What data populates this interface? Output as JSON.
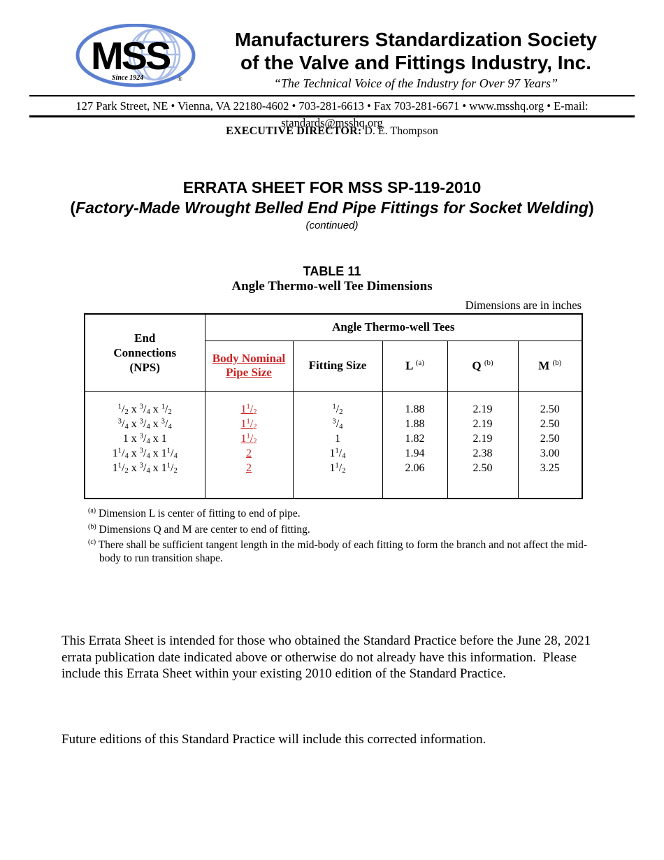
{
  "header": {
    "logo": {
      "text": "MSS",
      "since": "Since 1924",
      "registered": "®"
    },
    "org_name_line1": "Manufacturers Standardization Society",
    "org_name_line2": "of the Valve and Fittings Industry, Inc.",
    "tagline": "“The Technical Voice of the Industry for Over 97 Years”",
    "address": "127 Park Street, NE  •  Vienna, VA 22180-4602  •  703-281-6613  •  Fax 703-281-6671  •  www.msshq.org  •  E-mail: standards@msshq.org",
    "executive_director_label": "EXECUTIVE DIRECTOR:",
    "executive_director_name": " D. E. Thompson"
  },
  "document": {
    "title": "ERRATA SHEET FOR MSS SP-119-2010",
    "subtitle_open": "(",
    "subtitle_italic": "Factory-Made Wrought Belled End Pipe Fittings for Socket Welding",
    "subtitle_close": ")",
    "continued": "(continued)"
  },
  "table": {
    "caption_line1": "TABLE 11",
    "caption_line2": "Angle Thermo-well Tee Dimensions",
    "units_note": "Dimensions are in inches",
    "group_header": "Angle Thermo-well Tees",
    "headers": {
      "end_connections": "End Connections (NPS)",
      "body_nominal": "Body Nominal Pipe Size",
      "fitting_size": "Fitting Size",
      "l_label": "L",
      "l_sup": "(a)",
      "q_label": "Q",
      "q_sup": "(b)",
      "m_label": "M",
      "m_sup": "(b)"
    },
    "rows": [
      {
        "end": "{1/2} x {3/4} x {1/2}",
        "body": "1{1/2}",
        "fitting": "{1/2}",
        "l": "1.88",
        "q": "2.19",
        "m": "2.50"
      },
      {
        "end": "{3/4} x {3/4} x {3/4}",
        "body": "1{1/2}",
        "fitting": "{3/4}",
        "l": "1.88",
        "q": "2.19",
        "m": "2.50"
      },
      {
        "end": "1 x {3/4} x 1",
        "body": "1{1/2}",
        "fitting": "1",
        "l": "1.82",
        "q": "2.19",
        "m": "2.50"
      },
      {
        "end": "1{1/4} x {3/4} x 1{1/4}",
        "body": "2",
        "fitting": "1{1/4}",
        "l": "1.94",
        "q": "2.38",
        "m": "3.00"
      },
      {
        "end": "1{1/2} x {3/4} x 1{1/2}",
        "body": "2",
        "fitting": "1{1/2}",
        "l": "2.06",
        "q": "2.50",
        "m": "3.25"
      }
    ],
    "footnotes": [
      {
        "sup": "(a)",
        "text": "Dimension L is center of fitting to end of pipe."
      },
      {
        "sup": "(b)",
        "text": "Dimensions Q and M are center to end of fitting."
      },
      {
        "sup": "(c)",
        "text": "There shall be sufficient tangent length in the mid-body of each fitting to form the branch and not affect the mid-body to run transition shape."
      }
    ]
  },
  "body": {
    "paragraph1": "This Errata Sheet is intended for those who obtained the Standard Practice before the June 28, 2021 errata publication date indicated above or otherwise do not already have this information.  Please include this Errata Sheet within your existing 2010 edition of the Standard Practice.",
    "paragraph2": "Future editions of this Standard Practice will include this corrected information."
  },
  "colors": {
    "accent_red": "#cc2222",
    "logo_blue": "#5b7fd0",
    "logo_globe_blue": "#a9bce4",
    "text_black": "#000000"
  }
}
